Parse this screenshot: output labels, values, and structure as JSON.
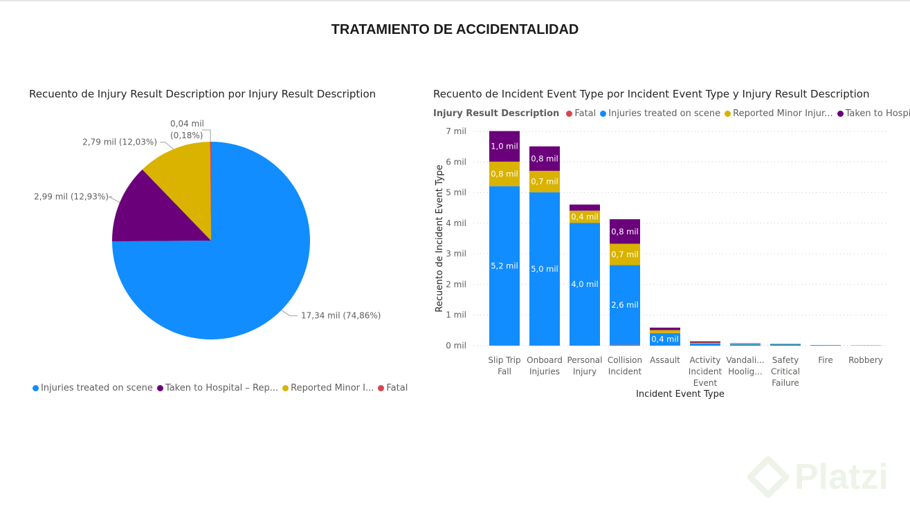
{
  "page": {
    "title": "TRATAMIENTO DE ACCIDENTALIDAD"
  },
  "colors": {
    "fatal": "#d64550",
    "treated": "#118dff",
    "minor": "#d9b300",
    "hospital": "#6b007b"
  },
  "watermark": {
    "text": "Platzi"
  },
  "chart_data": [
    {
      "type": "pie",
      "title": "Recuento de Injury Result Description por Injury Result Description",
      "legend_position": "bottom-left",
      "slices": [
        {
          "name": "Injuries treated on scene",
          "legend_label": "Injuries treated on scene",
          "value": 17.34,
          "label": "17,34 mil (74,86%)",
          "color": "#118dff"
        },
        {
          "name": "Taken to Hospital – Rep...",
          "legend_label": "Taken to Hospital – Rep...",
          "value": 2.99,
          "label": "2,99 mil (12,93%)",
          "color": "#6b007b"
        },
        {
          "name": "Reported Minor I...",
          "legend_label": "Reported Minor I...",
          "value": 2.79,
          "label": "2,79 mil (12,03%)",
          "color": "#d9b300"
        },
        {
          "name": "Fatal",
          "legend_label": "Fatal",
          "value": 0.04,
          "label_line1": "0,04 mil",
          "label_line2": "(0,18%)",
          "color": "#d64550"
        }
      ]
    },
    {
      "type": "bar",
      "stacked": true,
      "title": "Recuento de Incident Event Type por Incident Event Type y Injury Result Description",
      "xlabel": "Incident Event Type",
      "ylabel": "Recuento de Incident Event Type",
      "ylim": [
        0,
        7
      ],
      "yticks": [
        "0 mil",
        "1 mil",
        "2 mil",
        "3 mil",
        "4 mil",
        "5 mil",
        "6 mil",
        "7 mil"
      ],
      "grid": true,
      "legend_position": "top",
      "legend_title": "Injury Result Description",
      "categories": [
        [
          "Slip Trip",
          "Fall"
        ],
        [
          "Onboard",
          "Injuries"
        ],
        [
          "Personal",
          "Injury"
        ],
        [
          "Collision",
          "Incident"
        ],
        [
          "Assault"
        ],
        [
          "Activity",
          "Incident",
          "Event"
        ],
        [
          "Vandali...",
          "Hoolig..."
        ],
        [
          "Safety",
          "Critical",
          "Failure"
        ],
        [
          "Fire"
        ],
        [
          "Robbery"
        ]
      ],
      "series": [
        {
          "name": "Fatal",
          "color": "#d64550",
          "values": [
            0.01,
            0.01,
            0.01,
            0.03,
            0.01,
            0.0,
            0.0,
            0.0,
            0.0,
            0.0
          ],
          "labels": [
            "",
            "",
            "",
            "",
            "",
            "",
            "",
            "",
            "",
            ""
          ]
        },
        {
          "name": "Injuries treated on scene",
          "color": "#118dff",
          "values": [
            5.2,
            5.0,
            4.0,
            2.6,
            0.4,
            0.07,
            0.05,
            0.05,
            0.02,
            0.01
          ],
          "labels": [
            "5,2 mil",
            "5,0 mil",
            "4,0 mil",
            "2,6 mil",
            "0,4 mil",
            "",
            "",
            "",
            "",
            ""
          ]
        },
        {
          "name": "Reported Minor Injur...",
          "color": "#d9b300",
          "values": [
            0.8,
            0.7,
            0.4,
            0.7,
            0.1,
            0.03,
            0.02,
            0.02,
            0.0,
            0.0
          ],
          "labels": [
            "0,8 mil",
            "0,7 mil",
            "0,4 mil",
            "0,7 mil",
            "",
            "",
            "",
            "",
            "",
            ""
          ]
        },
        {
          "name": "Taken to Hospit...",
          "color": "#6b007b",
          "values": [
            1.0,
            0.8,
            0.2,
            0.8,
            0.08,
            0.04,
            0.01,
            0.0,
            0.0,
            0.0
          ],
          "labels": [
            "1,0 mil",
            "0,8 mil",
            "",
            "0,8 mil",
            "",
            "",
            "",
            "",
            "",
            ""
          ]
        }
      ]
    }
  ]
}
